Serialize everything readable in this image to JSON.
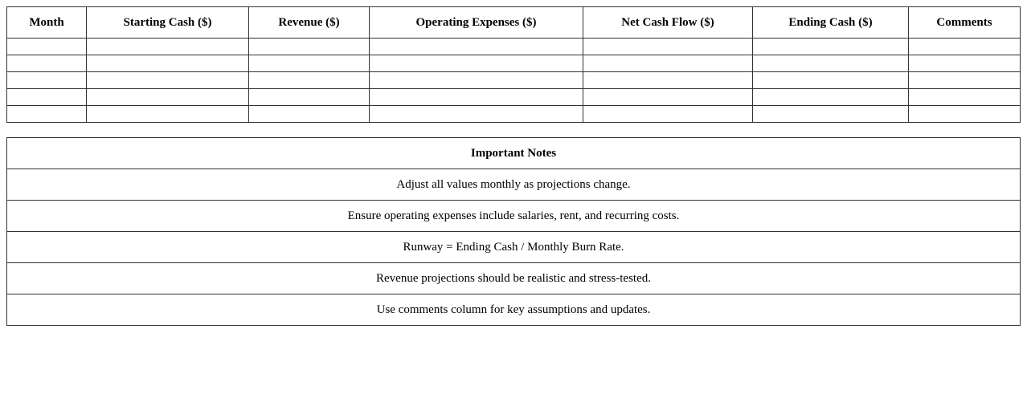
{
  "cash_table": {
    "headers": [
      "Month",
      "Starting Cash ($)",
      "Revenue ($)",
      "Operating Expenses ($)",
      "Net Cash Flow ($)",
      "Ending Cash ($)",
      "Comments"
    ],
    "rows": [
      [
        "",
        "",
        "",
        "",
        "",
        "",
        ""
      ],
      [
        "",
        "",
        "",
        "",
        "",
        "",
        ""
      ],
      [
        "",
        "",
        "",
        "",
        "",
        "",
        ""
      ],
      [
        "",
        "",
        "",
        "",
        "",
        "",
        ""
      ],
      [
        "",
        "",
        "",
        "",
        "",
        "",
        ""
      ]
    ]
  },
  "notes_table": {
    "title": "Important Notes",
    "notes": [
      "Adjust all values monthly as projections change.",
      "Ensure operating expenses include salaries, rent, and recurring costs.",
      "Runway = Ending Cash / Monthly Burn Rate.",
      "Revenue projections should be realistic and stress-tested.",
      "Use comments column for key assumptions and updates."
    ]
  }
}
